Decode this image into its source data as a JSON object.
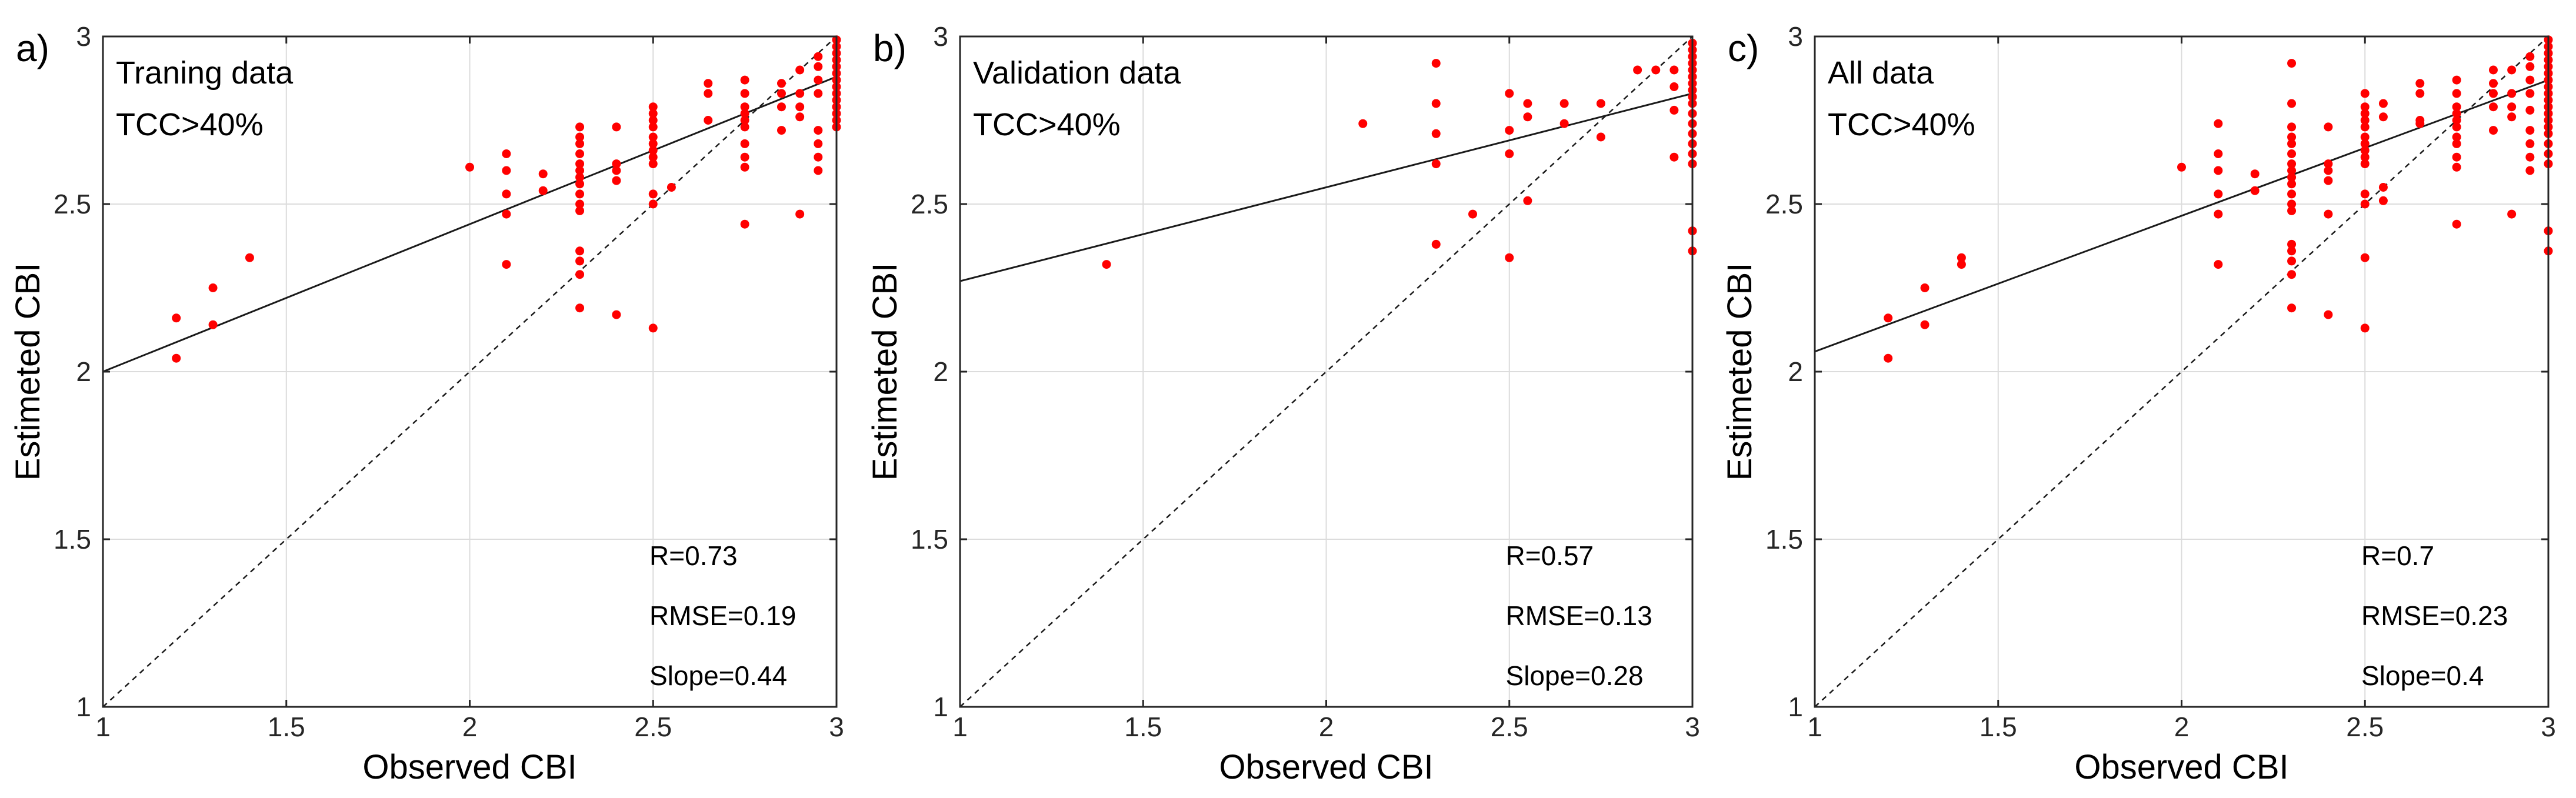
{
  "chart_data": [
    {
      "type": "scatter",
      "panel_label": "a)",
      "annotations": [
        "Traning data",
        "TCC>40%"
      ],
      "xlabel": "Observed CBI",
      "ylabel": "Estimeted CBI",
      "xlim": [
        1,
        3
      ],
      "ylim": [
        1,
        3
      ],
      "xticks": [
        "1",
        "1.5",
        "2",
        "2.5",
        "3"
      ],
      "yticks": [
        "1",
        "1.5",
        "2",
        "2.5",
        "3"
      ],
      "grid": true,
      "stats": [
        "R=0.73",
        "RMSE=0.19",
        "Slope=0.44"
      ],
      "fit_line": {
        "x": [
          1,
          3
        ],
        "y": [
          2.0,
          2.88
        ]
      },
      "identity_line": {
        "x": [
          1,
          3
        ],
        "y": [
          1,
          3
        ]
      },
      "points": [
        [
          1.2,
          2.16
        ],
        [
          1.2,
          2.04
        ],
        [
          1.3,
          2.25
        ],
        [
          1.3,
          2.14
        ],
        [
          1.4,
          2.34
        ],
        [
          2.0,
          2.61
        ],
        [
          2.1,
          2.65
        ],
        [
          2.1,
          2.6
        ],
        [
          2.1,
          2.53
        ],
        [
          2.1,
          2.47
        ],
        [
          2.1,
          2.32
        ],
        [
          2.2,
          2.59
        ],
        [
          2.2,
          2.54
        ],
        [
          2.3,
          2.73
        ],
        [
          2.3,
          2.7
        ],
        [
          2.3,
          2.68
        ],
        [
          2.3,
          2.65
        ],
        [
          2.3,
          2.62
        ],
        [
          2.3,
          2.6
        ],
        [
          2.3,
          2.58
        ],
        [
          2.3,
          2.56
        ],
        [
          2.3,
          2.53
        ],
        [
          2.3,
          2.5
        ],
        [
          2.3,
          2.48
        ],
        [
          2.3,
          2.36
        ],
        [
          2.3,
          2.33
        ],
        [
          2.3,
          2.29
        ],
        [
          2.3,
          2.19
        ],
        [
          2.4,
          2.73
        ],
        [
          2.4,
          2.62
        ],
        [
          2.4,
          2.6
        ],
        [
          2.4,
          2.57
        ],
        [
          2.4,
          2.17
        ],
        [
          2.5,
          2.79
        ],
        [
          2.5,
          2.77
        ],
        [
          2.5,
          2.75
        ],
        [
          2.5,
          2.73
        ],
        [
          2.5,
          2.7
        ],
        [
          2.5,
          2.68
        ],
        [
          2.5,
          2.66
        ],
        [
          2.5,
          2.64
        ],
        [
          2.5,
          2.62
        ],
        [
          2.5,
          2.53
        ],
        [
          2.5,
          2.5
        ],
        [
          2.5,
          2.13
        ],
        [
          2.55,
          2.55
        ],
        [
          2.65,
          2.86
        ],
        [
          2.65,
          2.83
        ],
        [
          2.65,
          2.75
        ],
        [
          2.75,
          2.87
        ],
        [
          2.75,
          2.83
        ],
        [
          2.75,
          2.79
        ],
        [
          2.75,
          2.77
        ],
        [
          2.75,
          2.75
        ],
        [
          2.75,
          2.73
        ],
        [
          2.75,
          2.68
        ],
        [
          2.75,
          2.64
        ],
        [
          2.75,
          2.61
        ],
        [
          2.75,
          2.44
        ],
        [
          2.85,
          2.86
        ],
        [
          2.85,
          2.83
        ],
        [
          2.85,
          2.79
        ],
        [
          2.85,
          2.72
        ],
        [
          2.9,
          2.9
        ],
        [
          2.9,
          2.83
        ],
        [
          2.9,
          2.79
        ],
        [
          2.9,
          2.76
        ],
        [
          2.9,
          2.47
        ],
        [
          2.95,
          2.94
        ],
        [
          2.95,
          2.91
        ],
        [
          2.95,
          2.87
        ],
        [
          2.95,
          2.83
        ],
        [
          2.95,
          2.72
        ],
        [
          2.95,
          2.68
        ],
        [
          2.95,
          2.64
        ],
        [
          2.95,
          2.6
        ],
        [
          3.0,
          2.99
        ],
        [
          3.0,
          2.97
        ],
        [
          3.0,
          2.95
        ],
        [
          3.0,
          2.93
        ],
        [
          3.0,
          2.91
        ],
        [
          3.0,
          2.89
        ],
        [
          3.0,
          2.87
        ],
        [
          3.0,
          2.85
        ],
        [
          3.0,
          2.83
        ],
        [
          3.0,
          2.81
        ],
        [
          3.0,
          2.79
        ],
        [
          3.0,
          2.77
        ],
        [
          3.0,
          2.75
        ],
        [
          3.0,
          2.73
        ]
      ]
    },
    {
      "type": "scatter",
      "panel_label": "b)",
      "annotations": [
        "Validation data",
        "TCC>40%"
      ],
      "xlabel": "Observed CBI",
      "ylabel": "Estimeted CBI",
      "xlim": [
        1,
        3
      ],
      "ylim": [
        1,
        3
      ],
      "xticks": [
        "1",
        "1.5",
        "2",
        "2.5",
        "3"
      ],
      "yticks": [
        "1",
        "1.5",
        "2",
        "2.5",
        "3"
      ],
      "grid": true,
      "stats": [
        "R=0.57",
        "RMSE=0.13",
        "Slope=0.28"
      ],
      "fit_line": {
        "x": [
          1,
          3
        ],
        "y": [
          2.27,
          2.83
        ]
      },
      "identity_line": {
        "x": [
          1,
          3
        ],
        "y": [
          1,
          3
        ]
      },
      "points": [
        [
          1.4,
          2.32
        ],
        [
          2.1,
          2.74
        ],
        [
          2.3,
          2.92
        ],
        [
          2.3,
          2.8
        ],
        [
          2.3,
          2.71
        ],
        [
          2.3,
          2.62
        ],
        [
          2.3,
          2.38
        ],
        [
          2.4,
          2.47
        ],
        [
          2.5,
          2.83
        ],
        [
          2.5,
          2.72
        ],
        [
          2.5,
          2.65
        ],
        [
          2.5,
          2.34
        ],
        [
          2.55,
          2.8
        ],
        [
          2.55,
          2.76
        ],
        [
          2.55,
          2.51
        ],
        [
          2.65,
          2.8
        ],
        [
          2.65,
          2.74
        ],
        [
          2.75,
          2.8
        ],
        [
          2.75,
          2.7
        ],
        [
          2.85,
          2.9
        ],
        [
          2.9,
          2.9
        ],
        [
          2.95,
          2.9
        ],
        [
          2.95,
          2.85
        ],
        [
          2.95,
          2.78
        ],
        [
          2.95,
          2.64
        ],
        [
          3.0,
          2.98
        ],
        [
          3.0,
          2.96
        ],
        [
          3.0,
          2.94
        ],
        [
          3.0,
          2.92
        ],
        [
          3.0,
          2.9
        ],
        [
          3.0,
          2.88
        ],
        [
          3.0,
          2.86
        ],
        [
          3.0,
          2.84
        ],
        [
          3.0,
          2.82
        ],
        [
          3.0,
          2.8
        ],
        [
          3.0,
          2.77
        ],
        [
          3.0,
          2.74
        ],
        [
          3.0,
          2.71
        ],
        [
          3.0,
          2.68
        ],
        [
          3.0,
          2.65
        ],
        [
          3.0,
          2.62
        ],
        [
          3.0,
          2.42
        ],
        [
          3.0,
          2.36
        ]
      ]
    },
    {
      "type": "scatter",
      "panel_label": "c)",
      "annotations": [
        "All data",
        "TCC>40%"
      ],
      "xlabel": "Observed CBI",
      "ylabel": "Estimeted CBI",
      "xlim": [
        1,
        3
      ],
      "ylim": [
        1,
        3
      ],
      "xticks": [
        "1",
        "1.5",
        "2",
        "2.5",
        "3"
      ],
      "yticks": [
        "1",
        "1.5",
        "2",
        "2.5",
        "3"
      ],
      "grid": true,
      "stats": [
        "R=0.7",
        "RMSE=0.23",
        "Slope=0.4"
      ],
      "fit_line": {
        "x": [
          1,
          3
        ],
        "y": [
          2.06,
          2.87
        ]
      },
      "identity_line": {
        "x": [
          1,
          3
        ],
        "y": [
          1,
          3
        ]
      },
      "points": [
        [
          1.2,
          2.16
        ],
        [
          1.2,
          2.04
        ],
        [
          1.3,
          2.25
        ],
        [
          1.3,
          2.14
        ],
        [
          1.4,
          2.34
        ],
        [
          1.4,
          2.32
        ],
        [
          2.0,
          2.61
        ],
        [
          2.1,
          2.74
        ],
        [
          2.1,
          2.65
        ],
        [
          2.1,
          2.6
        ],
        [
          2.1,
          2.53
        ],
        [
          2.1,
          2.47
        ],
        [
          2.1,
          2.32
        ],
        [
          2.2,
          2.59
        ],
        [
          2.2,
          2.54
        ],
        [
          2.3,
          2.92
        ],
        [
          2.3,
          2.8
        ],
        [
          2.3,
          2.73
        ],
        [
          2.3,
          2.7
        ],
        [
          2.3,
          2.68
        ],
        [
          2.3,
          2.65
        ],
        [
          2.3,
          2.62
        ],
        [
          2.3,
          2.6
        ],
        [
          2.3,
          2.58
        ],
        [
          2.3,
          2.56
        ],
        [
          2.3,
          2.53
        ],
        [
          2.3,
          2.5
        ],
        [
          2.3,
          2.48
        ],
        [
          2.3,
          2.38
        ],
        [
          2.3,
          2.36
        ],
        [
          2.3,
          2.33
        ],
        [
          2.3,
          2.29
        ],
        [
          2.3,
          2.19
        ],
        [
          2.4,
          2.73
        ],
        [
          2.4,
          2.62
        ],
        [
          2.4,
          2.6
        ],
        [
          2.4,
          2.57
        ],
        [
          2.4,
          2.47
        ],
        [
          2.4,
          2.17
        ],
        [
          2.5,
          2.83
        ],
        [
          2.5,
          2.79
        ],
        [
          2.5,
          2.77
        ],
        [
          2.5,
          2.75
        ],
        [
          2.5,
          2.73
        ],
        [
          2.5,
          2.7
        ],
        [
          2.5,
          2.68
        ],
        [
          2.5,
          2.66
        ],
        [
          2.5,
          2.64
        ],
        [
          2.5,
          2.62
        ],
        [
          2.5,
          2.53
        ],
        [
          2.5,
          2.5
        ],
        [
          2.5,
          2.34
        ],
        [
          2.5,
          2.13
        ],
        [
          2.55,
          2.8
        ],
        [
          2.55,
          2.76
        ],
        [
          2.55,
          2.55
        ],
        [
          2.55,
          2.51
        ],
        [
          2.65,
          2.86
        ],
        [
          2.65,
          2.83
        ],
        [
          2.65,
          2.75
        ],
        [
          2.65,
          2.74
        ],
        [
          2.75,
          2.87
        ],
        [
          2.75,
          2.83
        ],
        [
          2.75,
          2.79
        ],
        [
          2.75,
          2.77
        ],
        [
          2.75,
          2.75
        ],
        [
          2.75,
          2.73
        ],
        [
          2.75,
          2.7
        ],
        [
          2.75,
          2.68
        ],
        [
          2.75,
          2.64
        ],
        [
          2.75,
          2.61
        ],
        [
          2.75,
          2.44
        ],
        [
          2.85,
          2.9
        ],
        [
          2.85,
          2.86
        ],
        [
          2.85,
          2.83
        ],
        [
          2.85,
          2.79
        ],
        [
          2.85,
          2.72
        ],
        [
          2.9,
          2.9
        ],
        [
          2.9,
          2.83
        ],
        [
          2.9,
          2.79
        ],
        [
          2.9,
          2.76
        ],
        [
          2.9,
          2.47
        ],
        [
          2.95,
          2.94
        ],
        [
          2.95,
          2.91
        ],
        [
          2.95,
          2.87
        ],
        [
          2.95,
          2.83
        ],
        [
          2.95,
          2.78
        ],
        [
          2.95,
          2.72
        ],
        [
          2.95,
          2.68
        ],
        [
          2.95,
          2.64
        ],
        [
          2.95,
          2.6
        ],
        [
          3.0,
          2.99
        ],
        [
          3.0,
          2.97
        ],
        [
          3.0,
          2.95
        ],
        [
          3.0,
          2.93
        ],
        [
          3.0,
          2.91
        ],
        [
          3.0,
          2.89
        ],
        [
          3.0,
          2.87
        ],
        [
          3.0,
          2.85
        ],
        [
          3.0,
          2.83
        ],
        [
          3.0,
          2.81
        ],
        [
          3.0,
          2.79
        ],
        [
          3.0,
          2.77
        ],
        [
          3.0,
          2.75
        ],
        [
          3.0,
          2.73
        ],
        [
          3.0,
          2.71
        ],
        [
          3.0,
          2.68
        ],
        [
          3.0,
          2.65
        ],
        [
          3.0,
          2.62
        ],
        [
          3.0,
          2.42
        ],
        [
          3.0,
          2.36
        ]
      ]
    }
  ]
}
